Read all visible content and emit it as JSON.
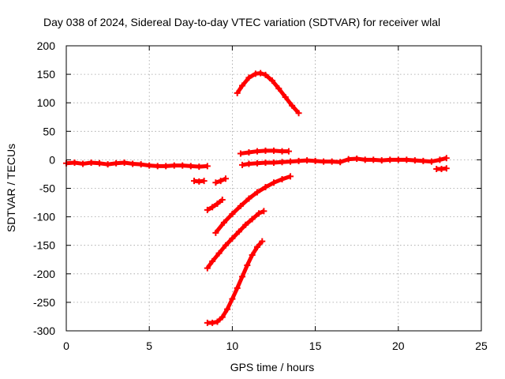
{
  "chart_data": {
    "type": "scatter",
    "title": "Day 038 of 2024, Sidereal Day-to-day VTEC variation (SDTVAR) for receiver wlal",
    "xlabel": "GPS time / hours",
    "ylabel": "SDTVAR / TECUs",
    "xlim": [
      0,
      25
    ],
    "ylim": [
      -300,
      200
    ],
    "xticks": [
      "0",
      "5",
      "10",
      "15",
      "20",
      "25"
    ],
    "yticks": [
      "200",
      "150",
      "100",
      "50",
      "0",
      "-50",
      "-100",
      "-150",
      "-200",
      "-250",
      "-300"
    ],
    "grid": true,
    "legend": "none",
    "marker": "plus",
    "color": "#ff0000",
    "series": [
      {
        "x": [
          0,
          0.5,
          1,
          1.5,
          2,
          2.5,
          3,
          3.5,
          4,
          4.5,
          5,
          5.5,
          6,
          6.5,
          7,
          7.5,
          8,
          8.5
        ],
        "y": [
          -6,
          -5,
          -7,
          -5,
          -6,
          -8,
          -6,
          -5,
          -7,
          -8,
          -10,
          -11,
          -11,
          -10,
          -10,
          -11,
          -12,
          -11
        ]
      },
      {
        "x": [
          7.7,
          8.0,
          8.3
        ],
        "y": [
          -37,
          -38,
          -37
        ]
      },
      {
        "x": [
          9.0,
          9.3,
          9.6
        ],
        "y": [
          -40,
          -37,
          -33
        ]
      },
      {
        "x": [
          8.5,
          8.8,
          9.1,
          9.4
        ],
        "y": [
          -88,
          -83,
          -77,
          -70
        ]
      },
      {
        "x": [
          8.5,
          8.8,
          9.2,
          9.6,
          10.0,
          10.4,
          10.8,
          11.2,
          11.6,
          11.9
        ],
        "y": [
          -190,
          -178,
          -164,
          -150,
          -138,
          -126,
          -114,
          -104,
          -94,
          -90
        ]
      },
      {
        "x": [
          9.0,
          9.5,
          10.0,
          10.5,
          11.0,
          11.5,
          12.0,
          12.5,
          13.0,
          13.5
        ],
        "y": [
          -128,
          -110,
          -95,
          -81,
          -68,
          -57,
          -48,
          -40,
          -34,
          -29
        ]
      },
      {
        "x": [
          8.5,
          8.8,
          9.1,
          9.4,
          9.7,
          10.0,
          10.3,
          10.6,
          10.9,
          11.2,
          11.5,
          11.8
        ],
        "y": [
          -286,
          -286,
          -284,
          -276,
          -262,
          -244,
          -225,
          -205,
          -185,
          -167,
          -153,
          -143
        ]
      },
      {
        "x": [
          10.3,
          10.6,
          11.0,
          11.4,
          11.7,
          12.0,
          12.4,
          12.8,
          13.2,
          13.6,
          14.0
        ],
        "y": [
          117,
          130,
          144,
          151,
          152,
          149,
          139,
          125,
          110,
          95,
          82
        ]
      },
      {
        "x": [
          10.5,
          11.0,
          11.5,
          12.0,
          12.5,
          13.0,
          13.4
        ],
        "y": [
          11,
          13,
          15,
          16,
          16,
          15,
          15
        ]
      },
      {
        "x": [
          10.6,
          11.0,
          11.5,
          12.0,
          12.5,
          13.0,
          13.5,
          14.0,
          14.5,
          15.0,
          15.5,
          16.0,
          16.5,
          17.0,
          17.5,
          18.0,
          18.5,
          19.0,
          19.5,
          20.0,
          20.5,
          21.0,
          21.5,
          22.0,
          22.5,
          22.9
        ],
        "y": [
          -9,
          -7,
          -6,
          -5,
          -5,
          -4,
          -3,
          -2,
          -1,
          -2,
          -3,
          -3,
          -4,
          1,
          2,
          0,
          0,
          -1,
          0,
          0,
          0,
          -1,
          -2,
          -3,
          0,
          3
        ]
      },
      {
        "x": [
          22.3,
          22.6,
          22.9
        ],
        "y": [
          -16,
          -16,
          -15
        ]
      }
    ]
  }
}
